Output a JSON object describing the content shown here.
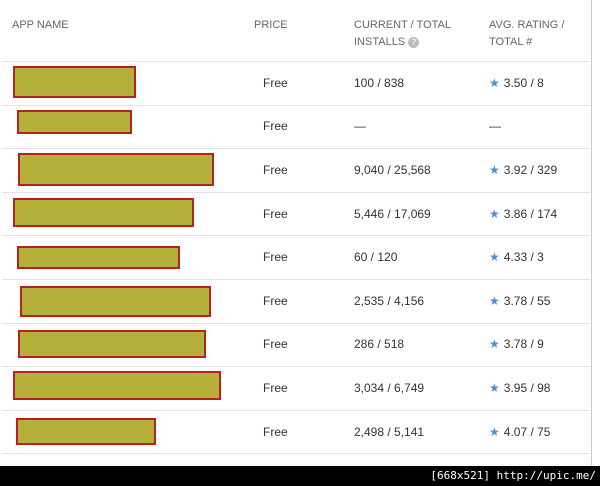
{
  "header": {
    "app_name": "APP NAME",
    "price": "PRICE",
    "installs": "CURRENT / TOTAL INSTALLS",
    "rating": "AVG. RATING / TOTAL #"
  },
  "rows": [
    {
      "price": "Free",
      "installs": "100 / 838",
      "rating": "3.50 / 8"
    },
    {
      "price": "Free",
      "installs": "—",
      "rating": "—"
    },
    {
      "price": "Free",
      "installs": "9,040 / 25,568",
      "rating": "3.92 / 329"
    },
    {
      "price": "Free",
      "installs": "5,446 / 17,069",
      "rating": "3.86 / 174"
    },
    {
      "price": "Free",
      "installs": "60 / 120",
      "rating": "4.33 / 3"
    },
    {
      "price": "Free",
      "installs": "2,535 / 4,156",
      "rating": "3.78 / 55"
    },
    {
      "price": "Free",
      "installs": "286 / 518",
      "rating": "3.78 / 9"
    },
    {
      "price": "Free",
      "installs": "3,034 / 6,749",
      "rating": "3.95 / 98"
    },
    {
      "price": "Free",
      "installs": "2,498 / 5,141",
      "rating": "4.07 / 75"
    }
  ],
  "footer": "[668x521] http://upic.me/"
}
